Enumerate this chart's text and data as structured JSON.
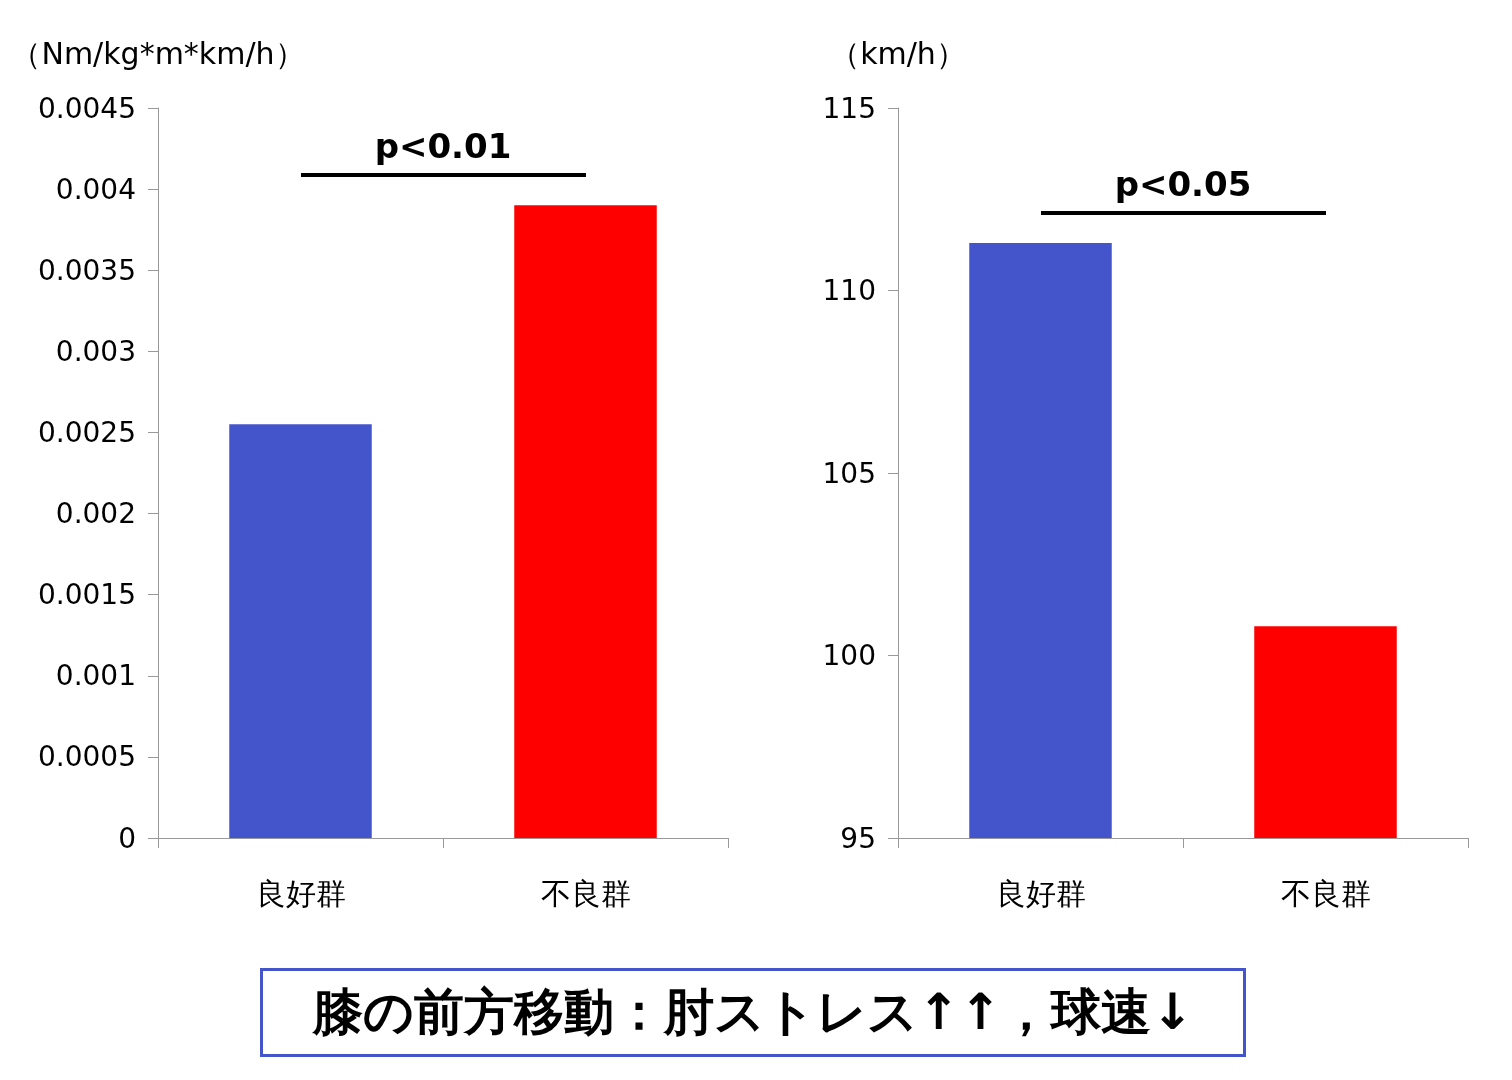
{
  "chart_data": [
    {
      "type": "bar",
      "ylabel": "（Nm/kg*m*km/h）",
      "categories": [
        "良好群",
        "不良群"
      ],
      "values": [
        0.00255,
        0.0039
      ],
      "colors": [
        "#4455cc",
        "#ff0000"
      ],
      "ylim": [
        0,
        0.0045
      ],
      "yticks": [
        0,
        0.0005,
        0.001,
        0.0015,
        0.002,
        0.0025,
        0.003,
        0.0035,
        0.004,
        0.0045
      ],
      "grid": false,
      "annotations": [
        "p<0.01"
      ]
    },
    {
      "type": "bar",
      "ylabel": "（km/h）",
      "categories": [
        "良好群",
        "不良群"
      ],
      "values": [
        111.3,
        100.8
      ],
      "colors": [
        "#4455cc",
        "#ff0000"
      ],
      "ylim": [
        95,
        115
      ],
      "yticks": [
        95,
        100,
        105,
        110,
        115
      ],
      "grid": false,
      "annotations": [
        "p<0.05"
      ]
    },
    {
      "type": "other",
      "title": "膝の前方移動：肘ストレス↑↑，球速↓"
    }
  ]
}
